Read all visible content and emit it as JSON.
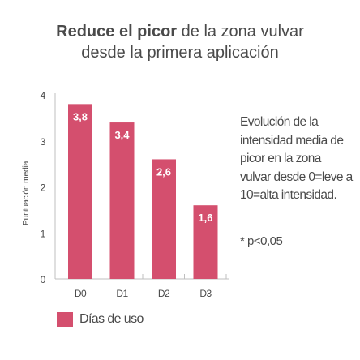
{
  "title": {
    "bold": "Reduce el picor",
    "rest_line1": " de la zona vulvar",
    "line2": "desde la primera aplicación"
  },
  "description": "Evolución de la intensidad media de picor en la zona vulvar desde 0=leve a 10=alta intensidad.",
  "note": "* p<0,05",
  "colors": {
    "bar": "#d44f6e",
    "axis": "#bfbfbf",
    "text": "#4a4a4a"
  },
  "chart_data": {
    "type": "bar",
    "categories": [
      "D0",
      "D1",
      "D2",
      "D3"
    ],
    "values": [
      3.8,
      3.4,
      2.6,
      1.6
    ],
    "value_labels": [
      "3,8",
      "3,4",
      "2,6",
      "1,6"
    ],
    "series": [
      {
        "name": "Días de uso",
        "values": [
          3.8,
          3.4,
          2.6,
          1.6
        ]
      }
    ],
    "ylabel": "Puntuación media",
    "xlabel": "",
    "ylim": [
      0,
      4
    ],
    "yticks": [
      0,
      1,
      2,
      3,
      4
    ],
    "grid": false,
    "legend": "bottom-left"
  }
}
